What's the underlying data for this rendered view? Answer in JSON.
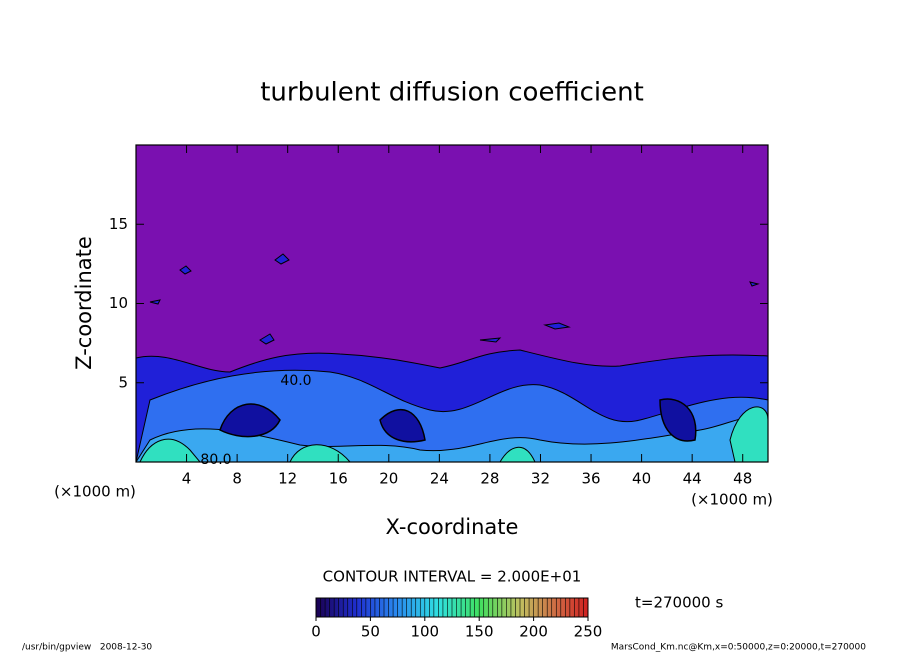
{
  "chart_data": {
    "type": "contour",
    "title": "turbulent diffusion coefficient",
    "x_label": "X-coordinate",
    "y_label": "Z-coordinate",
    "x_unit": "(×1000 m)",
    "y_unit": "(×1000 m)",
    "xlim": [
      0,
      50
    ],
    "ylim": [
      0,
      20
    ],
    "xticks": [
      4,
      8,
      12,
      16,
      20,
      24,
      28,
      32,
      36,
      40,
      44,
      48
    ],
    "yticks": [
      5,
      10,
      15
    ],
    "contour_labels": [
      {
        "value": 80,
        "label": "80.0"
      },
      {
        "value": 40,
        "label": "40.0"
      }
    ],
    "contour_interval": "CONTOUR INTERVAL = 2.000E+01",
    "colorbar": {
      "lim": [
        0,
        250
      ],
      "ticks": [
        0,
        50,
        100,
        150,
        200,
        250
      ]
    },
    "time_label": "t=270000 s",
    "footer_left": "/usr/bin/gpview   2008-12-30",
    "footer_right": "MarsCond_Km.nc@Km,x=0:50000,z=0:20000,t=270000",
    "background_color": "#7a10b0"
  }
}
